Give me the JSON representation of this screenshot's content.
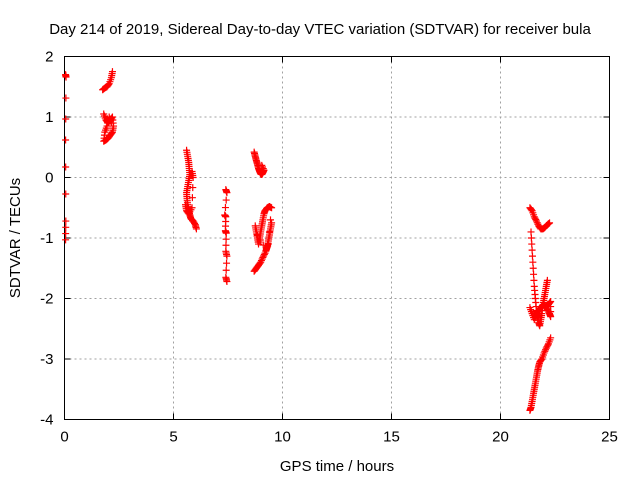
{
  "chart_data": {
    "type": "scatter",
    "title": "Day 214 of 2019, Sidereal Day-to-day VTEC variation (SDTVAR) for receiver bula",
    "xlabel": "GPS time / hours",
    "ylabel": "SDTVAR / TECUs",
    "xlim": [
      0,
      25
    ],
    "ylim": [
      -4,
      2
    ],
    "xticks": [
      0,
      5,
      10,
      15,
      20,
      25
    ],
    "yticks": [
      -4,
      -3,
      -2,
      -1,
      0,
      1,
      2
    ],
    "xtick_labels": [
      "0",
      "5",
      "10",
      "15",
      "20",
      "25"
    ],
    "ytick_labels": [
      "-4",
      "-3",
      "-2",
      "-1",
      "0",
      "1",
      "2"
    ],
    "grid": true,
    "marker": "+",
    "color": "#ff0000",
    "series": [
      {
        "name": "SDTVAR",
        "segments": [
          [
            [
              0.05,
              1.7
            ],
            [
              0.07,
              1.66
            ],
            [
              0.05,
              0.62
            ],
            [
              0.06,
              -0.72
            ],
            [
              0.05,
              -1.03
            ]
          ],
          [
            [
              1.75,
              1.45
            ],
            [
              1.85,
              1.48
            ],
            [
              1.95,
              1.5
            ],
            [
              2.05,
              1.55
            ],
            [
              2.15,
              1.65
            ],
            [
              2.2,
              1.75
            ]
          ],
          [
            [
              1.8,
              1.05
            ],
            [
              1.9,
              0.95
            ],
            [
              2.0,
              0.9
            ],
            [
              2.1,
              0.95
            ],
            [
              2.2,
              1.0
            ],
            [
              2.25,
              0.85
            ],
            [
              2.2,
              0.75
            ],
            [
              2.1,
              0.7
            ],
            [
              2.0,
              0.65
            ],
            [
              1.9,
              0.62
            ],
            [
              1.8,
              0.6
            ],
            [
              1.85,
              0.75
            ],
            [
              1.95,
              0.85
            ],
            [
              2.05,
              1.0
            ],
            [
              2.15,
              0.9
            ]
          ],
          [
            [
              5.6,
              0.45
            ],
            [
              5.65,
              0.35
            ],
            [
              5.7,
              0.25
            ],
            [
              5.72,
              0.15
            ],
            [
              5.75,
              0.05
            ],
            [
              5.7,
              -0.05
            ],
            [
              5.65,
              -0.15
            ],
            [
              5.6,
              -0.25
            ],
            [
              5.62,
              -0.35
            ],
            [
              5.65,
              -0.45
            ],
            [
              5.7,
              -0.55
            ],
            [
              5.75,
              -0.62
            ],
            [
              5.8,
              -0.68
            ],
            [
              5.9,
              -0.72
            ],
            [
              6.0,
              -0.78
            ],
            [
              6.05,
              -0.85
            ],
            [
              5.55,
              -0.45
            ],
            [
              5.6,
              -0.55
            ],
            [
              5.7,
              -0.6
            ],
            [
              5.85,
              -0.5
            ],
            [
              5.9,
              0.0
            ],
            [
              5.85,
              0.1
            ]
          ],
          [
            [
              7.4,
              -0.2
            ],
            [
              7.45,
              -0.25
            ],
            [
              7.35,
              -0.62
            ],
            [
              7.4,
              -0.65
            ],
            [
              7.38,
              -0.88
            ],
            [
              7.42,
              -0.92
            ],
            [
              7.4,
              -1.22
            ],
            [
              7.45,
              -1.3
            ],
            [
              7.4,
              -1.65
            ],
            [
              7.45,
              -1.72
            ]
          ],
          [
            [
              8.7,
              0.42
            ],
            [
              8.75,
              0.35
            ],
            [
              8.8,
              0.28
            ],
            [
              8.85,
              0.22
            ],
            [
              8.9,
              0.15
            ],
            [
              8.95,
              0.1
            ],
            [
              9.0,
              0.06
            ],
            [
              9.05,
              0.05
            ],
            [
              9.1,
              0.08
            ],
            [
              9.15,
              0.12
            ],
            [
              9.05,
              0.2
            ]
          ],
          [
            [
              8.7,
              -1.55
            ],
            [
              8.8,
              -1.5
            ],
            [
              8.9,
              -1.45
            ],
            [
              9.0,
              -1.4
            ],
            [
              9.1,
              -1.32
            ],
            [
              9.2,
              -1.25
            ],
            [
              9.3,
              -1.15
            ],
            [
              9.35,
              -1.05
            ],
            [
              9.4,
              -0.95
            ],
            [
              9.45,
              -0.85
            ],
            [
              9.5,
              -0.75
            ]
          ],
          [
            [
              8.75,
              -0.8
            ],
            [
              8.8,
              -0.9
            ],
            [
              8.85,
              -1.0
            ],
            [
              8.9,
              -1.1
            ],
            [
              8.95,
              -1.0
            ],
            [
              9.0,
              -0.9
            ],
            [
              9.05,
              -0.8
            ],
            [
              9.1,
              -0.7
            ],
            [
              9.15,
              -0.6
            ],
            [
              9.2,
              -0.55
            ],
            [
              9.3,
              -0.5
            ],
            [
              9.4,
              -0.48
            ],
            [
              9.5,
              -0.5
            ],
            [
              9.35,
              -1.1
            ],
            [
              9.25,
              -1.2
            ],
            [
              8.85,
              -0.95
            ]
          ],
          [
            [
              21.35,
              -0.5
            ],
            [
              21.45,
              -0.55
            ],
            [
              21.55,
              -0.65
            ],
            [
              21.65,
              -0.72
            ],
            [
              21.75,
              -0.8
            ],
            [
              21.85,
              -0.85
            ],
            [
              21.95,
              -0.85
            ],
            [
              22.05,
              -0.82
            ],
            [
              22.15,
              -0.78
            ],
            [
              22.25,
              -0.75
            ]
          ],
          [
            [
              21.35,
              -3.85
            ],
            [
              21.4,
              -3.8
            ],
            [
              21.45,
              -3.7
            ],
            [
              21.5,
              -3.6
            ],
            [
              21.55,
              -3.5
            ],
            [
              21.6,
              -3.4
            ],
            [
              21.65,
              -3.3
            ],
            [
              21.7,
              -3.2
            ],
            [
              21.75,
              -3.12
            ],
            [
              21.8,
              -3.05
            ],
            [
              21.9,
              -3.0
            ],
            [
              22.0,
              -2.9
            ],
            [
              22.1,
              -2.82
            ],
            [
              22.2,
              -2.75
            ],
            [
              22.3,
              -2.65
            ]
          ],
          [
            [
              21.4,
              -0.9
            ],
            [
              21.45,
              -1.2
            ],
            [
              21.5,
              -1.5
            ],
            [
              21.55,
              -1.8
            ],
            [
              21.6,
              -2.0
            ],
            [
              21.65,
              -2.2
            ],
            [
              21.7,
              -2.3
            ],
            [
              21.75,
              -2.4
            ],
            [
              21.8,
              -2.45
            ],
            [
              21.85,
              -2.35
            ],
            [
              21.9,
              -2.25
            ],
            [
              21.95,
              -2.1
            ],
            [
              22.0,
              -2.0
            ],
            [
              22.05,
              -1.9
            ],
            [
              22.1,
              -1.8
            ],
            [
              22.15,
              -1.7
            ]
          ],
          [
            [
              21.35,
              -2.15
            ],
            [
              21.45,
              -2.25
            ],
            [
              21.55,
              -2.35
            ],
            [
              21.65,
              -2.25
            ],
            [
              21.75,
              -2.2
            ],
            [
              21.85,
              -2.15
            ],
            [
              21.95,
              -2.1
            ],
            [
              22.05,
              -2.12
            ],
            [
              22.15,
              -2.18
            ],
            [
              22.25,
              -2.25
            ],
            [
              22.3,
              -2.3
            ],
            [
              22.3,
              -2.05
            ],
            [
              22.2,
              -2.1
            ]
          ]
        ]
      }
    ]
  }
}
